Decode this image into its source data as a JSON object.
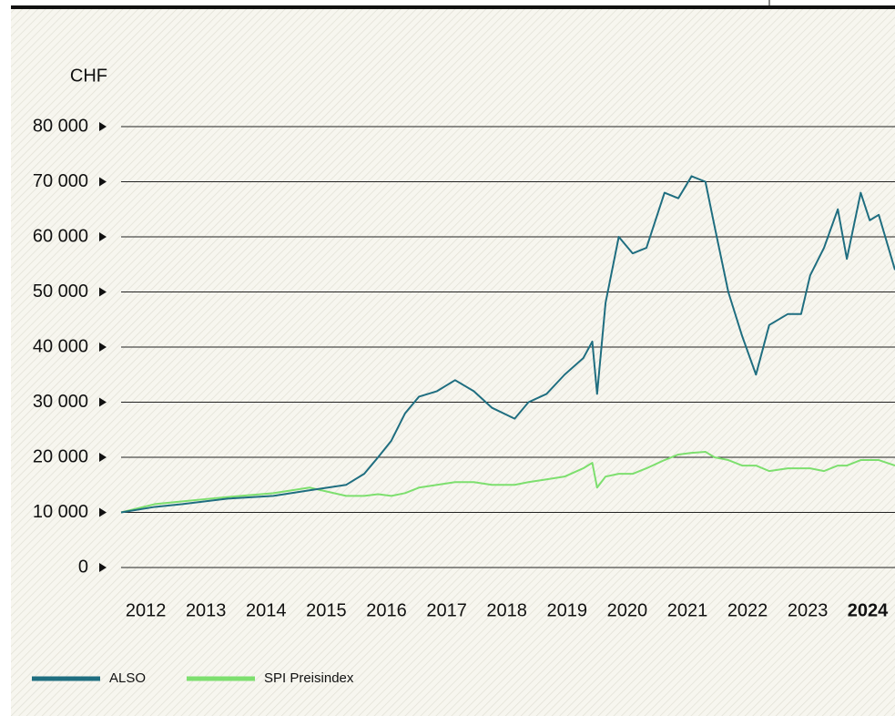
{
  "chart_data": {
    "type": "line",
    "y_label": "CHF",
    "x": [
      2011.59,
      2012.15,
      2012.61,
      2013.36,
      2014.12,
      2014.72,
      2015.33,
      2015.63,
      2015.86,
      2016.08,
      2016.31,
      2016.54,
      2016.84,
      2017.14,
      2017.45,
      2017.75,
      2018.13,
      2018.36,
      2018.66,
      2018.96,
      2019.27,
      2019.42,
      2019.5,
      2019.64,
      2019.86,
      2020.09,
      2020.32,
      2020.62,
      2020.85,
      2021.07,
      2021.3,
      2021.45,
      2021.68,
      2021.91,
      2022.14,
      2022.36,
      2022.67,
      2022.89,
      2023.04,
      2023.27,
      2023.5,
      2023.65,
      2023.88,
      2024.03,
      2024.18,
      2024.45
    ],
    "series": [
      {
        "name": "ALSO",
        "color": "#1f6e80",
        "values": [
          10000,
          11000,
          11500,
          12500,
          13000,
          14000,
          15000,
          17000,
          20000,
          23000,
          28000,
          31000,
          32000,
          34000,
          32000,
          29000,
          27000,
          30000,
          31500,
          35000,
          38000,
          41000,
          31500,
          48000,
          60000,
          57000,
          58000,
          68000,
          67000,
          71000,
          70000,
          62000,
          50000,
          42000,
          35000,
          44000,
          46000,
          46000,
          53000,
          58000,
          65000,
          56000,
          68000,
          63000,
          64000,
          54000
        ]
      },
      {
        "name": "SPI Preisindex",
        "color": "#7ddf6e",
        "values": [
          10000,
          11500,
          12000,
          12800,
          13500,
          14500,
          13000,
          13000,
          13300,
          13000,
          13500,
          14500,
          15000,
          15500,
          15500,
          15000,
          15000,
          15500,
          16000,
          16500,
          18000,
          19000,
          14500,
          16500,
          17000,
          17000,
          18000,
          19500,
          20500,
          20800,
          21000,
          20000,
          19500,
          18500,
          18500,
          17500,
          18000,
          18000,
          18000,
          17500,
          18500,
          18500,
          19500,
          19500,
          19500,
          18500
        ]
      }
    ],
    "xlim": [
      2011.59,
      2024.45
    ],
    "xticks": [
      2012,
      2013,
      2014,
      2015,
      2016,
      2017,
      2018,
      2019,
      2020,
      2021,
      2022,
      2023,
      2024
    ],
    "ylim": [
      0,
      80000
    ],
    "yticks": [
      0,
      {
        "value": 10000,
        "label": "10 000"
      },
      {
        "value": 20000,
        "label": "20 000"
      },
      {
        "value": 30000,
        "label": "30 000"
      },
      {
        "value": 40000,
        "label": "40 000"
      },
      {
        "value": 50000,
        "label": "50 000"
      },
      {
        "value": 60000,
        "label": "60 000"
      },
      {
        "value": 70000,
        "label": "70 000"
      },
      {
        "value": 80000,
        "label": "80 000"
      }
    ],
    "grid": true
  }
}
